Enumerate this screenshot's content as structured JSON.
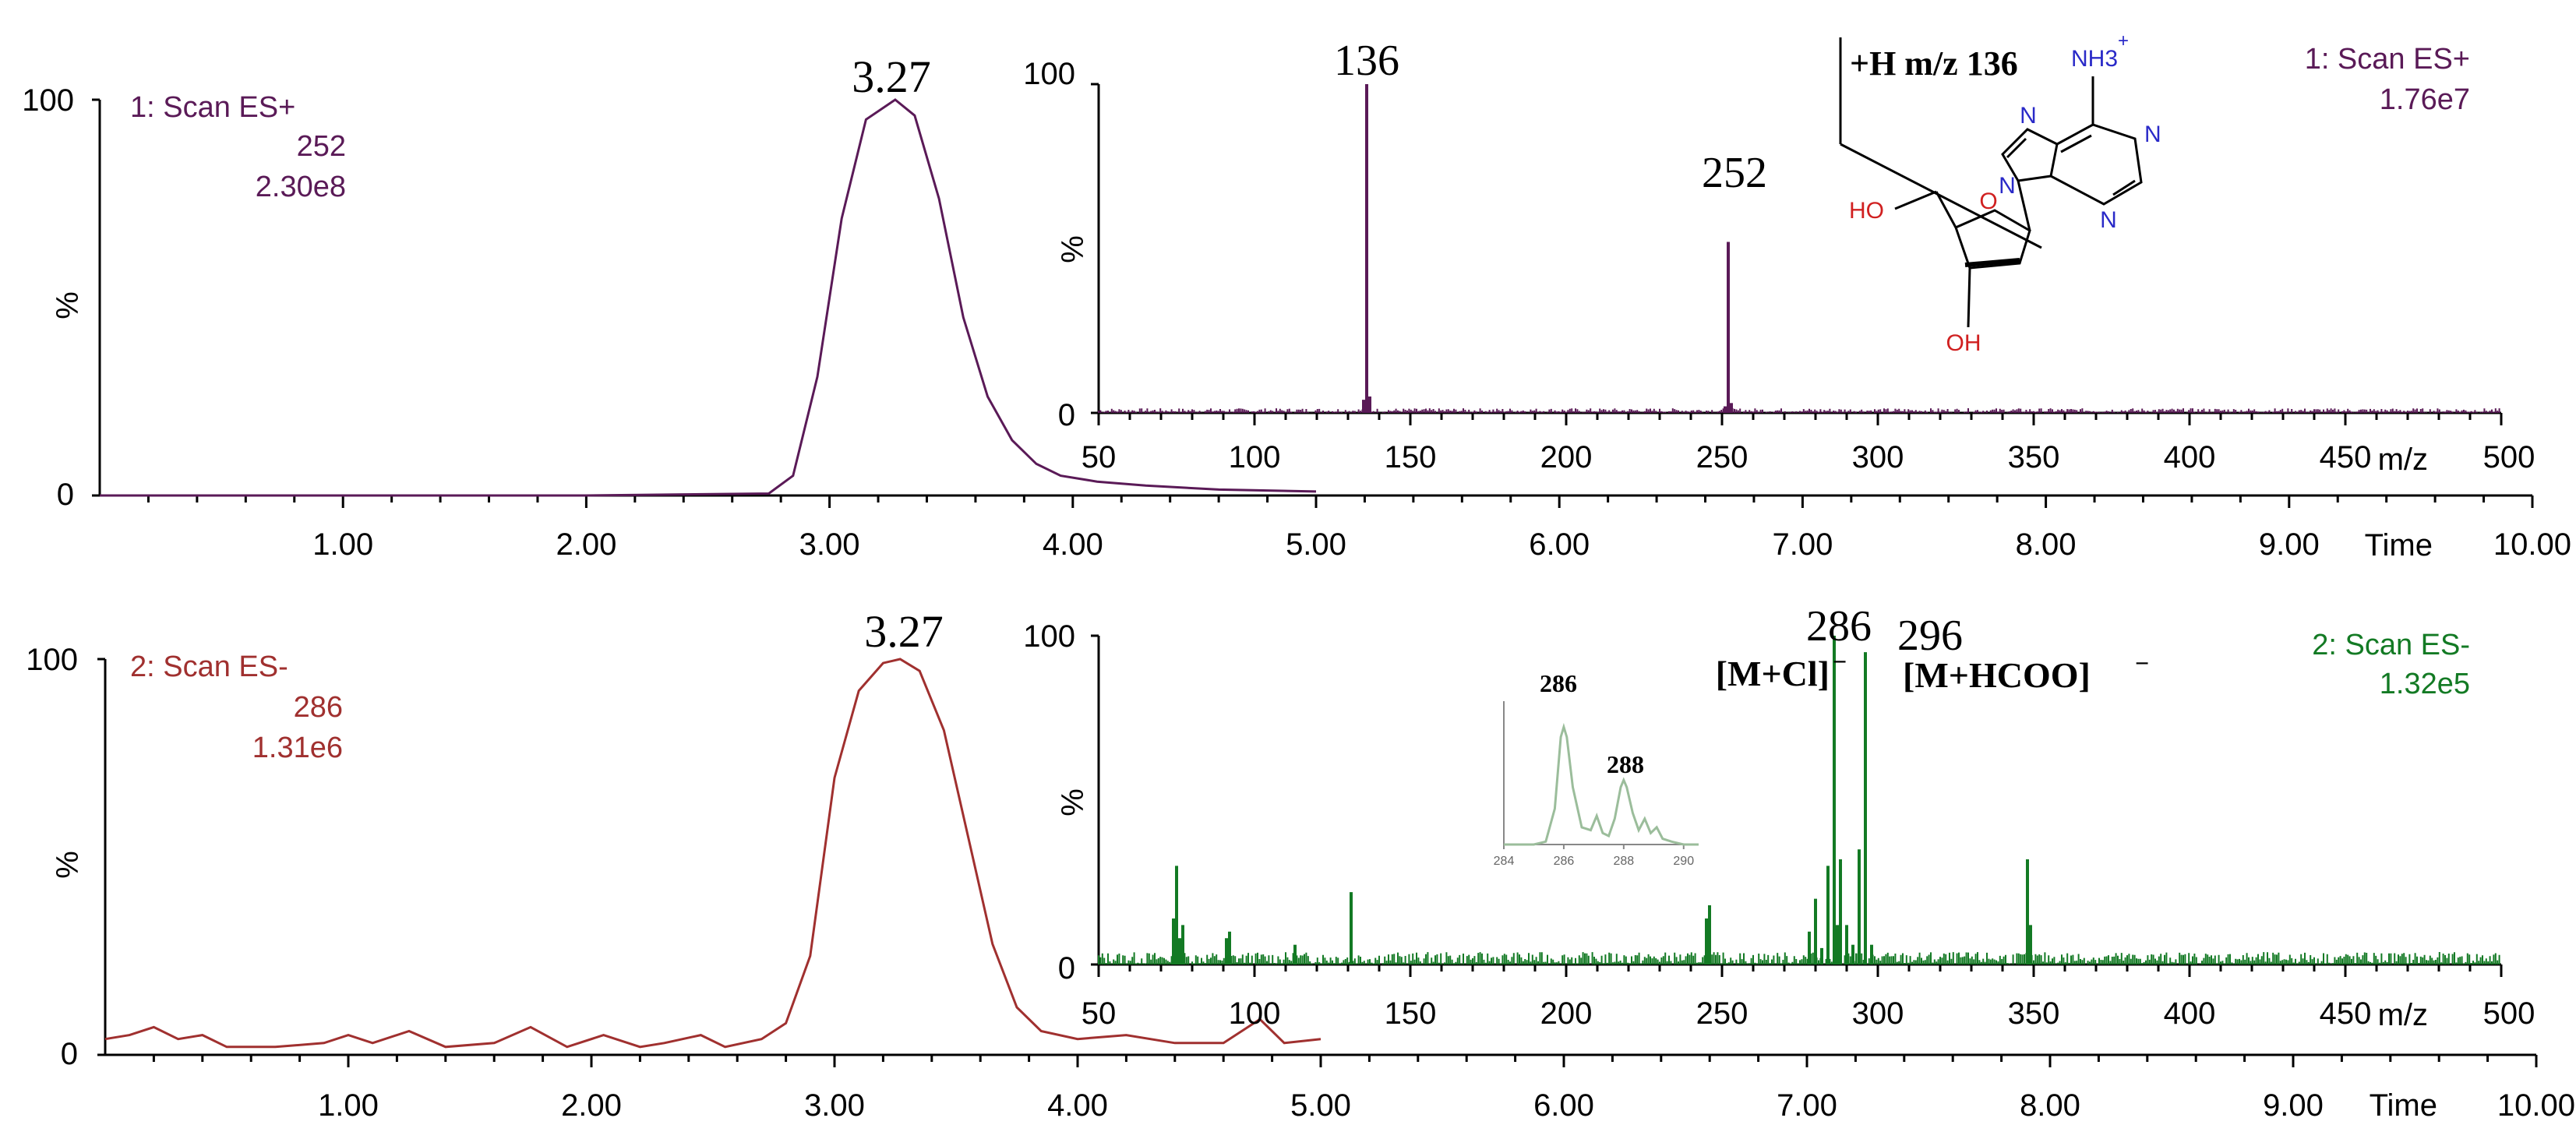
{
  "colors": {
    "es_plus": "#5a1a57",
    "es_minus_chrom": "#a0302f",
    "es_minus_spec": "#137a24",
    "axis": "#000000",
    "molecule_bond": "#000000",
    "atom_n": "#2a2ac8",
    "atom_o": "#d02020",
    "inset": "#9bbd9b"
  },
  "chart_data": [
    {
      "type": "line",
      "id": "chrom_esplus",
      "info": {
        "scan": "1: Scan ES+",
        "mass": "252",
        "intensity": "2.30e8"
      },
      "peak_label": "3.27",
      "ylabel": "%",
      "xlabel": "Time",
      "xlim": [
        0,
        10
      ],
      "ylim": [
        0,
        100
      ],
      "x_ticks": [
        "1.00",
        "2.00",
        "3.00",
        "4.00",
        "5.00",
        "6.00",
        "7.00",
        "8.00",
        "9.00",
        "10.00"
      ],
      "y_ticks": [
        "0",
        "100"
      ],
      "series": [
        {
          "x": [
            0,
            1,
            2,
            2.75,
            2.85,
            2.95,
            3.05,
            3.15,
            3.27,
            3.35,
            3.45,
            3.55,
            3.65,
            3.75,
            3.85,
            3.95,
            4.1,
            4.3,
            4.6,
            5.0
          ],
          "y": [
            0,
            0,
            0,
            0.5,
            5,
            30,
            70,
            95,
            100,
            96,
            75,
            45,
            25,
            14,
            8,
            5,
            3.5,
            2.5,
            1.5,
            1
          ]
        }
      ]
    },
    {
      "type": "bar",
      "id": "spec_esplus",
      "info": {
        "scan": "1: Scan ES+",
        "intensity": "1.76e7"
      },
      "ylabel": "%",
      "xlabel": "m/z",
      "xlim": [
        50,
        500
      ],
      "ylim": [
        0,
        100
      ],
      "x_ticks": [
        "50",
        "100",
        "150",
        "200",
        "250",
        "300",
        "350",
        "400",
        "450",
        "500"
      ],
      "y_ticks": [
        "0",
        "100"
      ],
      "peaks": {
        "mz": [
          135,
          136,
          137,
          251,
          252,
          253
        ],
        "intensity": [
          4,
          100,
          5,
          2,
          52,
          3
        ]
      },
      "peak_labels": [
        "136",
        "252"
      ],
      "fragment_label": "+H m/z 136",
      "molecule_atoms": {
        "nh3": "NH3",
        "nh3_charge": "+",
        "n": "N",
        "o": "O",
        "oh": "OH",
        "ho": "HO"
      }
    },
    {
      "type": "line",
      "id": "chrom_esminus",
      "info": {
        "scan": "2: Scan ES-",
        "mass": "286",
        "intensity": "1.31e6"
      },
      "peak_label": "3.27",
      "ylabel": "%",
      "xlabel": "Time",
      "xlim": [
        0,
        10
      ],
      "ylim": [
        0,
        100
      ],
      "x_ticks": [
        "1.00",
        "2.00",
        "3.00",
        "4.00",
        "5.00",
        "6.00",
        "7.00",
        "8.00",
        "9.00",
        "10.00"
      ],
      "y_ticks": [
        "0",
        "100"
      ],
      "series": [
        {
          "x": [
            0,
            0.1,
            0.2,
            0.3,
            0.4,
            0.5,
            0.7,
            0.9,
            1.0,
            1.1,
            1.25,
            1.4,
            1.6,
            1.75,
            1.9,
            2.05,
            2.2,
            2.3,
            2.45,
            2.55,
            2.7,
            2.8,
            2.9,
            3.0,
            3.1,
            3.2,
            3.27,
            3.35,
            3.45,
            3.55,
            3.65,
            3.75,
            3.85,
            4.0,
            4.2,
            4.4,
            4.6,
            4.75,
            4.85,
            5.0
          ],
          "y": [
            4,
            5,
            7,
            4,
            5,
            2,
            2,
            3,
            5,
            3,
            6,
            2,
            3,
            7,
            2,
            5,
            2,
            3,
            5,
            2,
            4,
            8,
            25,
            70,
            92,
            99,
            100,
            97,
            82,
            55,
            28,
            12,
            6,
            4,
            5,
            3,
            3,
            9,
            3,
            4
          ]
        }
      ]
    },
    {
      "type": "bar",
      "id": "spec_esminus",
      "info": {
        "scan": "2: Scan ES-",
        "intensity": "1.32e5"
      },
      "ylabel": "%",
      "xlabel": "m/z",
      "xlim": [
        50,
        500
      ],
      "ylim": [
        0,
        100
      ],
      "x_ticks": [
        "50",
        "100",
        "150",
        "200",
        "250",
        "300",
        "350",
        "400",
        "450",
        "500"
      ],
      "y_ticks": [
        "0",
        "100"
      ],
      "peaks": {
        "mz": [
          74,
          75,
          76,
          77,
          91,
          92,
          113,
          131,
          245,
          246,
          278,
          280,
          282,
          284,
          286,
          287,
          288,
          290,
          292,
          294,
          296,
          298,
          348,
          349
        ],
        "intensity": [
          14,
          30,
          8,
          12,
          8,
          10,
          6,
          22,
          14,
          18,
          10,
          20,
          5,
          30,
          100,
          12,
          32,
          12,
          6,
          35,
          95,
          6,
          32,
          12
        ]
      },
      "peak_labels": [
        "286",
        "296"
      ],
      "annotations": {
        "m_cl": "[M+Cl]",
        "m_hcoo": "[M+HCOO]",
        "charge": "−"
      },
      "inset": {
        "type": "line",
        "xlim": [
          284,
          290.5
        ],
        "ylim": [
          0,
          100
        ],
        "x_ticks": [
          "284",
          "286",
          "288",
          "290"
        ],
        "peak_labels": [
          "286",
          "288"
        ],
        "series": [
          {
            "x": [
              284,
              284.5,
              285,
              285.4,
              285.7,
              285.9,
              286.0,
              286.1,
              286.3,
              286.6,
              286.9,
              287.1,
              287.3,
              287.5,
              287.7,
              287.9,
              288.0,
              288.1,
              288.3,
              288.5,
              288.7,
              288.9,
              289.1,
              289.3,
              289.6,
              290,
              290.5
            ],
            "y": [
              0,
              0,
              0,
              2,
              25,
              75,
              82,
              75,
              40,
              12,
              10,
              20,
              8,
              6,
              18,
              40,
              45,
              40,
              22,
              10,
              18,
              8,
              12,
              4,
              2,
              0,
              0
            ]
          }
        ]
      }
    }
  ]
}
